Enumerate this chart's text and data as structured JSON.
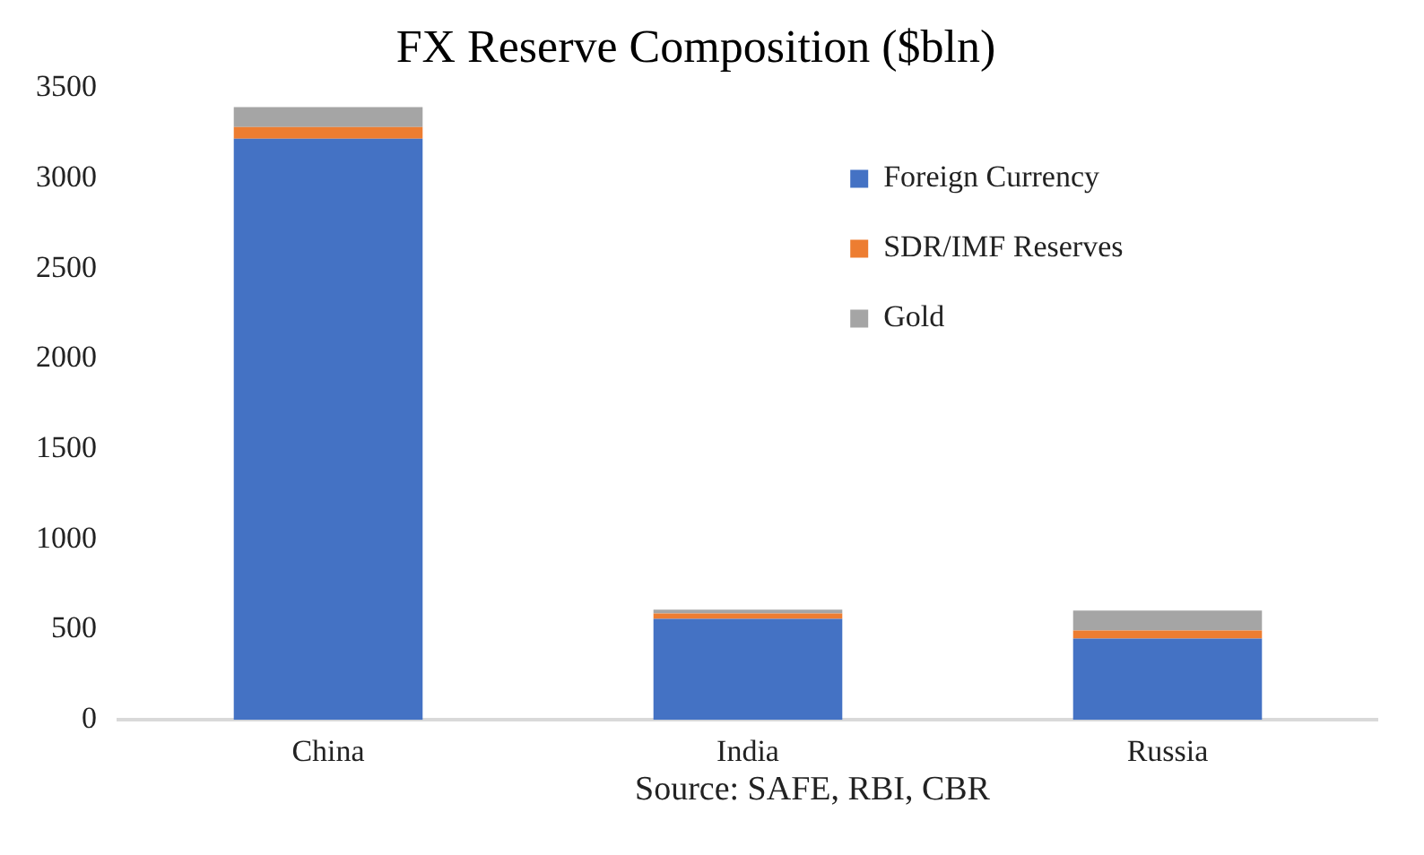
{
  "chart_data": {
    "type": "bar",
    "title": "FX Reserve Composition ($bln)",
    "categories": [
      "China",
      "India",
      "Russia"
    ],
    "stacked": true,
    "series": [
      {
        "name": "Foreign Currency",
        "color": "#4472c4",
        "values": [
          3220,
          560,
          450
        ]
      },
      {
        "name": "SDR/IMF Reserves",
        "color": "#ed7d31",
        "values": [
          65,
          30,
          45
        ]
      },
      {
        "name": "Gold",
        "color": "#a5a5a5",
        "values": [
          110,
          20,
          110
        ]
      }
    ],
    "ylim": [
      0,
      3500
    ],
    "yticks": [
      0,
      500,
      1000,
      1500,
      2000,
      2500,
      3000,
      3500
    ],
    "grid": false,
    "legend": "top right",
    "annotations": [
      "Source: SAFE, RBI, CBR"
    ]
  }
}
